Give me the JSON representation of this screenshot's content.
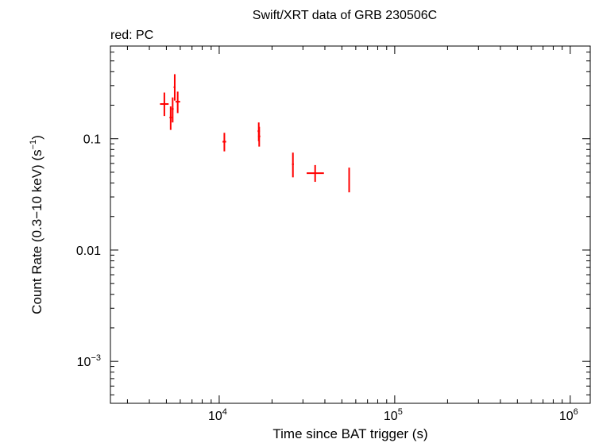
{
  "chart_data": {
    "type": "scatter",
    "title": "Swift/XRT data of GRB 230506C",
    "subtitle": "red: PC",
    "xlabel": "Time since BAT trigger (s)",
    "ylabel_main": "Count Rate (0.3−10 keV) (s",
    "ylabel_exp": "−1",
    "ylabel_close": ")",
    "x_scale": "log",
    "y_scale": "log",
    "xlim": [
      2400,
      1300000
    ],
    "ylim": [
      0.00042,
      0.68
    ],
    "x_ticks": [
      {
        "value": 10000,
        "base": "10",
        "exp": "4"
      },
      {
        "value": 100000,
        "base": "10",
        "exp": "5"
      },
      {
        "value": 1000000,
        "base": "10",
        "exp": "6"
      }
    ],
    "y_ticks": [
      {
        "value": 0.1,
        "label": "0.1",
        "base": "",
        "exp": ""
      },
      {
        "value": 0.01,
        "label": "0.01",
        "base": "",
        "exp": ""
      },
      {
        "value": 0.001,
        "label": "",
        "base": "10",
        "exp": "−3"
      }
    ],
    "series": [
      {
        "color": "#ff0000",
        "points": [
          {
            "x": 4870,
            "xerr": [
              4600,
              5150
            ],
            "y": 0.205,
            "yerr": [
              0.16,
              0.26
            ]
          },
          {
            "x": 5290,
            "xerr": [
              5210,
              5370
            ],
            "y": 0.155,
            "yerr": [
              0.12,
              0.195
            ]
          },
          {
            "x": 5430,
            "xerr": [
              5360,
              5500
            ],
            "y": 0.185,
            "yerr": [
              0.14,
              0.235
            ]
          },
          {
            "x": 5580,
            "xerr": [
              5500,
              5640
            ],
            "y": 0.29,
            "yerr": [
              0.22,
              0.38
            ]
          },
          {
            "x": 5800,
            "xerr": [
              5640,
              5990
            ],
            "y": 0.215,
            "yerr": [
              0.17,
              0.265
            ]
          },
          {
            "x": 10700,
            "xerr": [
              10450,
              10950
            ],
            "y": 0.094,
            "yerr": [
              0.077,
              0.113
            ]
          },
          {
            "x": 16800,
            "xerr": [
              16550,
              17050
            ],
            "y": 0.117,
            "yerr": [
              0.095,
              0.14
            ]
          },
          {
            "x": 16900,
            "xerr": [
              16650,
              17150
            ],
            "y": 0.105,
            "yerr": [
              0.085,
              0.128
            ]
          },
          {
            "x": 26300,
            "xerr": [
              26000,
              26600
            ],
            "y": 0.059,
            "yerr": [
              0.045,
              0.075
            ]
          },
          {
            "x": 35200,
            "xerr": [
              31500,
              39500
            ],
            "y": 0.049,
            "yerr": [
              0.041,
              0.058
            ]
          },
          {
            "x": 55000,
            "xerr": [
              54500,
              55500
            ],
            "y": 0.043,
            "yerr": [
              0.033,
              0.055
            ]
          }
        ]
      }
    ]
  }
}
